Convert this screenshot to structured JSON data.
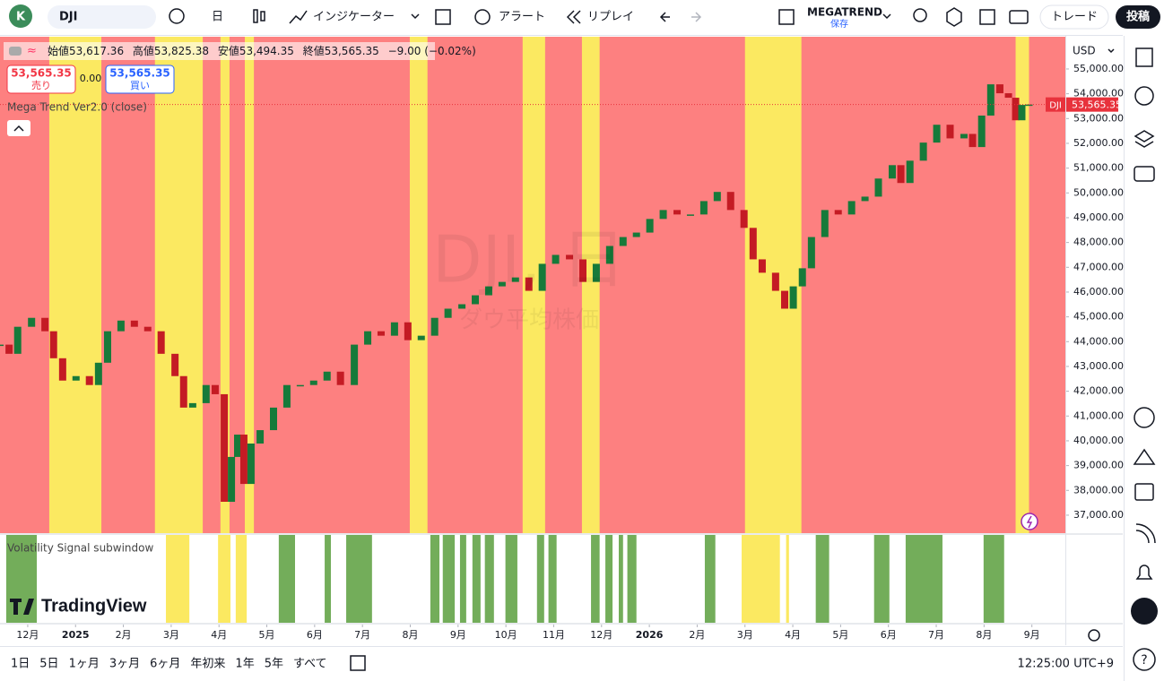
{
  "toolbar": {
    "avatar": "K",
    "symbol": "DJI",
    "interval": "日",
    "indicators": "インジケーター",
    "alert": "アラート",
    "replay": "リプレイ",
    "layout_name": "MEGATREND",
    "layout_status": "保存",
    "trade": "トレード",
    "publish": "投稿"
  },
  "legend": {
    "items": [
      "始値53,617.36",
      "高値53,825.38",
      "安値53,494.35",
      "終値53,565.35",
      "−9.00 (−0.02%)"
    ],
    "sell_price": "53,565.35",
    "sell": "売り",
    "spread": "0.00",
    "buy_price": "53,565.35",
    "buy": "買い",
    "indicator": "Mega Trend Ver2.0 (close)"
  },
  "watermark": {
    "title": "DJI, 日",
    "subtitle": "ダウ平均株価"
  },
  "chart_data": {
    "type": "candlestick",
    "currency": "USD",
    "x": [
      -0.58,
      -0.39,
      -0.21,
      0.08,
      0.36,
      0.54,
      0.73,
      1.01,
      1.29,
      1.48,
      1.67,
      1.95,
      2.23,
      2.51,
      2.79,
      3.08,
      3.26,
      3.45,
      3.73,
      3.92,
      4.11,
      4.26,
      4.39,
      4.52,
      4.67,
      4.86,
      5.14,
      5.42,
      5.7,
      5.98,
      6.26,
      6.54,
      6.83,
      7.11,
      7.39,
      7.67,
      7.95,
      8.23,
      8.51,
      8.79,
      9.08,
      9.36,
      9.64,
      9.92,
      10.2,
      10.48,
      10.76,
      11.04,
      11.33,
      11.61,
      11.89,
      12.17,
      12.45,
      12.73,
      13.01,
      13.29,
      13.58,
      13.86,
      14.14,
      14.42,
      14.7,
      14.98,
      15.17,
      15.36,
      15.64,
      15.83,
      16.01,
      16.2,
      16.39,
      16.67,
      16.95,
      17.23,
      17.51,
      17.79,
      18.08,
      18.26,
      18.45,
      18.73,
      19.01,
      19.29,
      19.58,
      19.76,
      19.95,
      20.14,
      20.33,
      20.51,
      20.66,
      20.79,
      20.94
    ],
    "values": [
      43880,
      43510,
      44600,
      44960,
      44420,
      43330,
      42430,
      42610,
      42250,
      43150,
      44420,
      44850,
      44600,
      44420,
      43510,
      42610,
      41340,
      41520,
      42250,
      41880,
      37540,
      39350,
      40250,
      38260,
      39890,
      40430,
      41340,
      42250,
      42250,
      42430,
      42790,
      42250,
      43880,
      44420,
      44240,
      44780,
      44060,
      44240,
      44960,
      45330,
      45510,
      45870,
      46230,
      46410,
      46590,
      46050,
      47140,
      47500,
      47320,
      46410,
      47140,
      47860,
      48220,
      48400,
      48950,
      49310,
      49130,
      49130,
      49670,
      50040,
      49310,
      48590,
      47320,
      46780,
      46050,
      45330,
      46230,
      46960,
      48220,
      49310,
      49130,
      49670,
      49850,
      50580,
      51120,
      50400,
      51300,
      52030,
      52750,
      52200,
      52380,
      51850,
      53120,
      54380,
      54020,
      53840,
      52930,
      53550,
      53565.35
    ],
    "up_color": "#167a3a",
    "down_color": "#c41b24",
    "xlim": [
      -0.58,
      21.7
    ],
    "ylim": [
      36275,
      56300
    ],
    "xticks": [
      {
        "value": 0,
        "label": "12月"
      },
      {
        "value": 1,
        "label": "2025"
      },
      {
        "value": 2,
        "label": "2月"
      },
      {
        "value": 3,
        "label": "3月"
      },
      {
        "value": 4,
        "label": "4月"
      },
      {
        "value": 5,
        "label": "5月"
      },
      {
        "value": 6,
        "label": "6月"
      },
      {
        "value": 7,
        "label": "7月"
      },
      {
        "value": 8,
        "label": "8月"
      },
      {
        "value": 9,
        "label": "9月"
      },
      {
        "value": 10,
        "label": "10月"
      },
      {
        "value": 11,
        "label": "11月"
      },
      {
        "value": 12,
        "label": "12月"
      },
      {
        "value": 13,
        "label": "2026"
      },
      {
        "value": 14,
        "label": "2月"
      },
      {
        "value": 15,
        "label": "3月"
      },
      {
        "value": 16,
        "label": "4月"
      },
      {
        "value": 17,
        "label": "5月"
      },
      {
        "value": 18,
        "label": "6月"
      },
      {
        "value": 19,
        "label": "7月"
      },
      {
        "value": 20,
        "label": "8月"
      },
      {
        "value": 21,
        "label": "9月"
      }
    ],
    "yticks": [
      {
        "value": 37000,
        "label": "37,000.00"
      },
      {
        "value": 38000,
        "label": "38,000.00"
      },
      {
        "value": 39000,
        "label": "39,000.00"
      },
      {
        "value": 40000,
        "label": "40,000.00"
      },
      {
        "value": 41000,
        "label": "41,000.00"
      },
      {
        "value": 42000,
        "label": "42,000.00"
      },
      {
        "value": 43000,
        "label": "43,000.00"
      },
      {
        "value": 44000,
        "label": "44,000.00"
      },
      {
        "value": 45000,
        "label": "45,000.00"
      },
      {
        "value": 46000,
        "label": "46,000.00"
      },
      {
        "value": 47000,
        "label": "47,000.00"
      },
      {
        "value": 48000,
        "label": "48,000.00"
      },
      {
        "value": 49000,
        "label": "49,000.00"
      },
      {
        "value": 50000,
        "label": "50,000.00"
      },
      {
        "value": 51000,
        "label": "51,000.00"
      },
      {
        "value": 52000,
        "label": "52,000.00"
      },
      {
        "value": 53000,
        "label": "53,000.00"
      },
      {
        "value": 54000,
        "label": "54,000.00"
      },
      {
        "value": 55000,
        "label": "55,000.00"
      }
    ],
    "background_color": "#fd8080",
    "band_color": "#fbe961",
    "bands": [
      [
        0.45,
        1.54
      ],
      [
        2.66,
        3.66
      ],
      [
        4.03,
        4.22
      ],
      [
        4.54,
        4.73
      ],
      [
        7.99,
        8.36
      ],
      [
        10.35,
        10.82
      ],
      [
        11.59,
        11.96
      ],
      [
        15.0,
        16.18
      ],
      [
        20.66,
        20.94
      ]
    ],
    "price_line": {
      "value": 53565.35,
      "label": "53,565.35",
      "symbol": "DJI",
      "color": "#e8323c"
    }
  },
  "subwindow": {
    "label": "Volatility Signal subwindow",
    "green_color": "#73ad5a",
    "yellow_color": "#fbe961",
    "green_bands": [
      [
        -0.45,
        0.19
      ],
      [
        5.25,
        5.59
      ],
      [
        6.21,
        6.34
      ],
      [
        6.66,
        7.2
      ],
      [
        8.42,
        8.61
      ],
      [
        8.68,
        8.93
      ],
      [
        9.04,
        9.17
      ],
      [
        9.3,
        9.47
      ],
      [
        9.56,
        9.75
      ],
      [
        9.99,
        10.24
      ],
      [
        10.65,
        10.8
      ],
      [
        10.89,
        11.06
      ],
      [
        11.78,
        11.96
      ],
      [
        12.08,
        12.23
      ],
      [
        12.36,
        12.45
      ],
      [
        12.54,
        12.73
      ],
      [
        14.16,
        14.38
      ],
      [
        16.48,
        16.76
      ],
      [
        17.7,
        18.02
      ],
      [
        18.36,
        19.13
      ],
      [
        19.99,
        20.42
      ]
    ],
    "yellow_bands": [
      [
        2.89,
        3.38
      ],
      [
        3.98,
        4.24
      ],
      [
        4.35,
        4.58
      ],
      [
        14.93,
        15.73
      ],
      [
        15.86,
        15.92
      ]
    ]
  },
  "logo": "TradingView",
  "footer": {
    "ranges": [
      "1日",
      "5日",
      "1ヶ月",
      "3ヶ月",
      "6ヶ月",
      "年初来",
      "1年",
      "5年",
      "すべて"
    ],
    "clock": "12:25:00 UTC+9"
  }
}
